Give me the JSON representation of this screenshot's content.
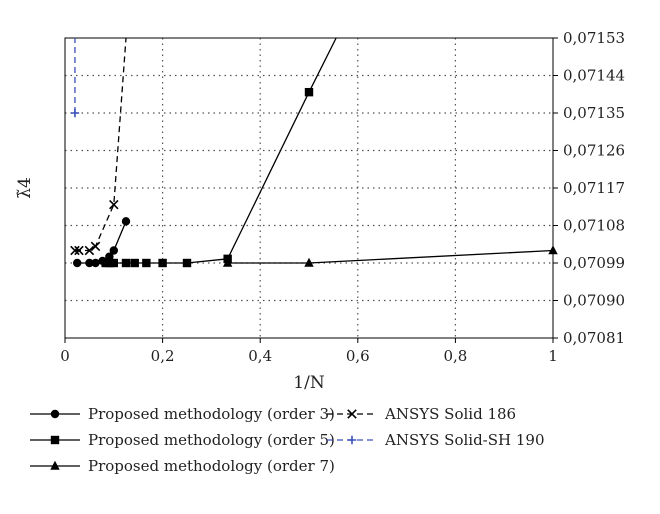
{
  "chart_data": {
    "type": "line",
    "xlabel": "1/N",
    "ylabel": "λ̃4",
    "xlim": [
      0,
      1
    ],
    "ylim": [
      0.07081,
      0.07153
    ],
    "x_ticks": [
      0,
      0.2,
      0.4,
      0.6,
      0.8,
      1
    ],
    "x_tick_labels": [
      "0",
      "0,2",
      "0,4",
      "0,6",
      "0,8",
      "1"
    ],
    "y_ticks": [
      0.07081,
      0.0709,
      0.07099,
      0.07108,
      0.07117,
      0.07126,
      0.07135,
      0.07144,
      0.07153
    ],
    "y_tick_labels": [
      "0,07081",
      "0,07090",
      "0,07099",
      "0,07108",
      "0,07117",
      "0,07126",
      "0,07135",
      "0,07144",
      "0,07153"
    ],
    "grid": true,
    "y_axis_side": "right",
    "legend_placement": "bottom",
    "series": [
      {
        "name": "Proposed methodology (order 3)",
        "marker": "circle",
        "dash": "solid",
        "color": "#000000",
        "x": [
          0.025,
          0.05,
          0.0625,
          0.0769,
          0.0909,
          0.1,
          0.125
        ],
        "y": [
          0.07099,
          0.07099,
          0.07099,
          0.070995,
          0.071005,
          0.07102,
          0.07109
        ]
      },
      {
        "name": "Proposed methodology (order 5)",
        "marker": "square",
        "dash": "solid",
        "color": "#000000",
        "x": [
          0.0833,
          0.0909,
          0.1,
          0.125,
          0.1429,
          0.1667,
          0.2,
          0.25,
          0.3333,
          0.5,
          0.5556
        ],
        "y": [
          0.07099,
          0.07099,
          0.07099,
          0.07099,
          0.07099,
          0.07099,
          0.07099,
          0.07099,
          0.071,
          0.0714,
          0.07153
        ]
      },
      {
        "name": "Proposed methodology (order 7)",
        "marker": "triangle",
        "dash": "solid",
        "color": "#000000",
        "x": [
          0.3333,
          0.5,
          1.0
        ],
        "y": [
          0.07099,
          0.07099,
          0.07102
        ]
      },
      {
        "name": "ANSYS Solid 186",
        "marker": "x",
        "dash": "dashed",
        "color": "#000000",
        "x": [
          0.0204,
          0.0286,
          0.05,
          0.0625,
          0.1,
          0.125
        ],
        "y": [
          0.07102,
          0.07102,
          0.07102,
          0.07103,
          0.07113,
          0.07153
        ]
      },
      {
        "name": "ANSYS Solid-SH 190",
        "marker": "plus",
        "dash": "dashed",
        "color": "#3a4fb8",
        "x": [
          0.0204,
          0.0204
        ],
        "y": [
          0.07135,
          0.07153
        ]
      }
    ]
  }
}
